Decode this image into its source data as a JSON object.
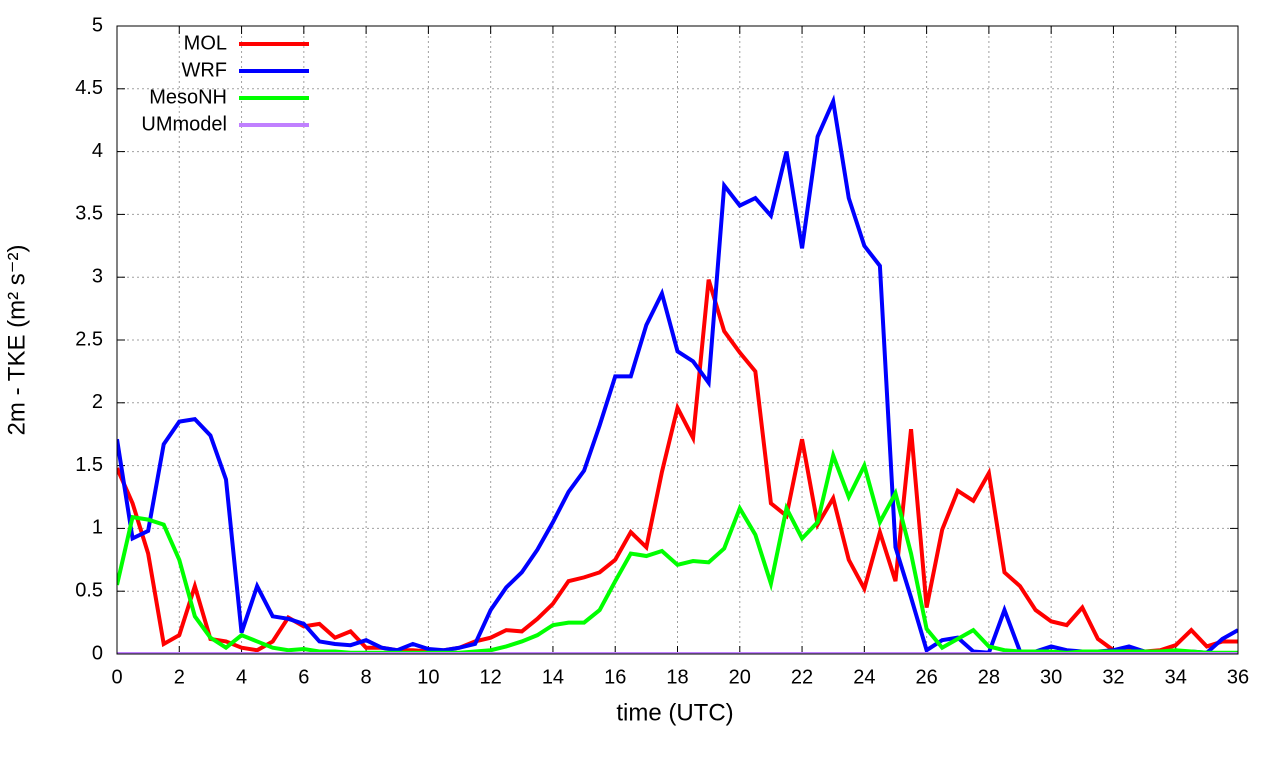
{
  "chart_data": {
    "type": "line",
    "xlabel": "time (UTC)",
    "ylabel": "2m - TKE (m² s⁻²)",
    "x": [
      0,
      0.5,
      1,
      1.5,
      2,
      2.5,
      3,
      3.5,
      4,
      4.5,
      5,
      5.5,
      6,
      6.5,
      7,
      7.5,
      8,
      8.5,
      9,
      9.5,
      10,
      10.5,
      11,
      11.5,
      12,
      12.5,
      13,
      13.5,
      14,
      14.5,
      15,
      15.5,
      16,
      16.5,
      17,
      17.5,
      18,
      18.5,
      19,
      19.5,
      20,
      20.5,
      21,
      21.5,
      22,
      22.5,
      23,
      23.5,
      24,
      24.5,
      25,
      25.5,
      26,
      26.5,
      27,
      27.5,
      28,
      28.5,
      29,
      29.5,
      30,
      30.5,
      31,
      31.5,
      32,
      32.5,
      33,
      33.5,
      34,
      34.5,
      35,
      35.5,
      36
    ],
    "series": [
      {
        "name": "MOL",
        "color": "#ff0000",
        "values": [
          1.48,
          1.2,
          0.8,
          0.08,
          0.15,
          0.54,
          0.12,
          0.1,
          0.05,
          0.03,
          0.1,
          0.29,
          0.22,
          0.24,
          0.13,
          0.18,
          0.05,
          0.05,
          0.03,
          0.03,
          0.02,
          0.03,
          0.05,
          0.1,
          0.13,
          0.19,
          0.18,
          0.28,
          0.4,
          0.58,
          0.61,
          0.65,
          0.75,
          0.97,
          0.85,
          1.45,
          1.96,
          1.72,
          2.98,
          2.57,
          2.4,
          2.25,
          1.2,
          1.1,
          1.71,
          1.03,
          1.24,
          0.75,
          0.52,
          0.97,
          0.58,
          1.79,
          0.37,
          0.99,
          1.3,
          1.22,
          1.44,
          0.65,
          0.54,
          0.35,
          0.26,
          0.23,
          0.37,
          0.12,
          0.03,
          0.05,
          0.02,
          0.03,
          0.07,
          0.19,
          0.06,
          0.1,
          0.1
        ]
      },
      {
        "name": "WRF",
        "color": "#0000ff",
        "values": [
          1.71,
          0.92,
          0.98,
          1.67,
          1.85,
          1.87,
          1.74,
          1.39,
          0.17,
          0.54,
          0.3,
          0.28,
          0.24,
          0.1,
          0.08,
          0.07,
          0.11,
          0.05,
          0.03,
          0.08,
          0.04,
          0.03,
          0.05,
          0.08,
          0.35,
          0.53,
          0.65,
          0.83,
          1.05,
          1.29,
          1.46,
          1.82,
          2.21,
          2.21,
          2.62,
          2.87,
          2.41,
          2.33,
          2.16,
          3.73,
          3.57,
          3.63,
          3.49,
          4.0,
          3.23,
          4.12,
          4.4,
          3.63,
          3.25,
          3.09,
          0.85,
          0.45,
          0.03,
          0.11,
          0.13,
          0.02,
          0.01,
          0.35,
          0.02,
          0.02,
          0.06,
          0.03,
          0.02,
          0.02,
          0.03,
          0.06,
          0.02,
          0.02,
          0.02,
          0.02,
          0.01,
          0.12,
          0.19
        ]
      },
      {
        "name": "MesoNH",
        "color": "#00ff00",
        "values": [
          0.55,
          1.09,
          1.07,
          1.03,
          0.75,
          0.3,
          0.13,
          0.05,
          0.15,
          0.1,
          0.05,
          0.03,
          0.04,
          0.02,
          0.02,
          0.01,
          0.01,
          0.01,
          0.01,
          0.01,
          0.01,
          0.01,
          0.01,
          0.02,
          0.03,
          0.06,
          0.1,
          0.15,
          0.23,
          0.25,
          0.25,
          0.35,
          0.58,
          0.8,
          0.78,
          0.82,
          0.71,
          0.74,
          0.73,
          0.84,
          1.16,
          0.95,
          0.56,
          1.16,
          0.92,
          1.05,
          1.58,
          1.25,
          1.5,
          1.05,
          1.28,
          0.8,
          0.2,
          0.05,
          0.12,
          0.19,
          0.06,
          0.03,
          0.02,
          0.02,
          0.02,
          0.01,
          0.02,
          0.02,
          0.02,
          0.02,
          0.02,
          0.02,
          0.03,
          0.02,
          0.01,
          0.01,
          0.01
        ]
      },
      {
        "name": "UMmodel",
        "color": "#c080ff",
        "values": [
          0,
          0,
          0,
          0,
          0,
          0,
          0,
          0,
          0,
          0,
          0,
          0,
          0,
          0,
          0,
          0,
          0,
          0,
          0,
          0,
          0,
          0,
          0,
          0,
          0,
          0,
          0,
          0,
          0,
          0,
          0,
          0,
          0,
          0,
          0,
          0,
          0,
          0,
          0,
          0,
          0,
          0,
          0,
          0,
          0,
          0,
          0,
          0,
          0,
          0,
          0,
          0,
          0,
          0,
          0,
          0,
          0,
          0,
          0,
          0,
          0,
          0,
          0,
          0,
          0,
          0,
          0,
          0,
          0,
          0,
          0,
          0,
          0
        ]
      }
    ],
    "xlim": [
      0,
      36
    ],
    "xticks": [
      0,
      2,
      4,
      6,
      8,
      10,
      12,
      14,
      16,
      18,
      20,
      22,
      24,
      26,
      28,
      30,
      32,
      34,
      36
    ],
    "ylim": [
      0,
      5
    ],
    "yticks": [
      0,
      0.5,
      1,
      1.5,
      2,
      2.5,
      3,
      3.5,
      4,
      4.5,
      5
    ],
    "grid": true,
    "legend": "top-left"
  }
}
